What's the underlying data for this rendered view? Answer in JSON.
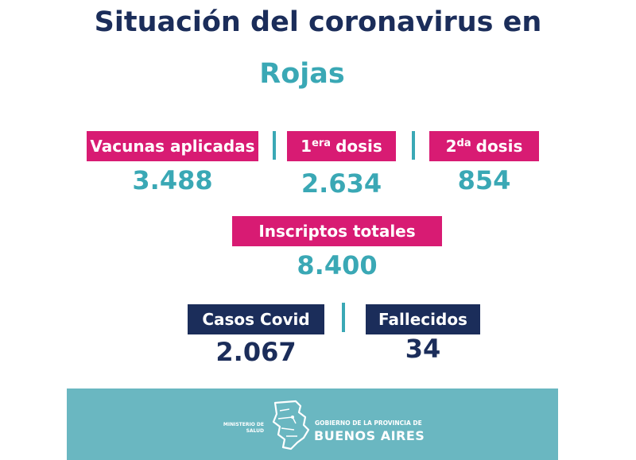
{
  "header": {
    "title": "Situación del coronavirus en",
    "location": "Rojas"
  },
  "stats": {
    "vacunas": {
      "label": "Vacunas aplicadas",
      "value": "3.488"
    },
    "primera_dosis": {
      "label_num": "1",
      "label_sup": "era",
      "label_text": "dosis",
      "value": "2.634"
    },
    "segunda_dosis": {
      "label_num": "2",
      "label_sup": "da",
      "label_text": "dosis",
      "value": "854"
    },
    "inscriptos": {
      "label": "Inscriptos totales",
      "value": "8.400"
    },
    "casos": {
      "label": "Casos Covid",
      "value": "2.067"
    },
    "fallecidos": {
      "label": "Fallecidos",
      "value": "34"
    }
  },
  "footer": {
    "ministry_line1": "MINISTERIO DE",
    "ministry_line2": "SALUD",
    "gov_line1": "GOBIERNO DE LA PROVINCIA DE",
    "gov_line2": "BUENOS AIRES"
  },
  "colors": {
    "navy": "#1b2d5a",
    "teal": "#3aa8b5",
    "pink": "#d81b73",
    "footer": "#6ab7c1"
  }
}
